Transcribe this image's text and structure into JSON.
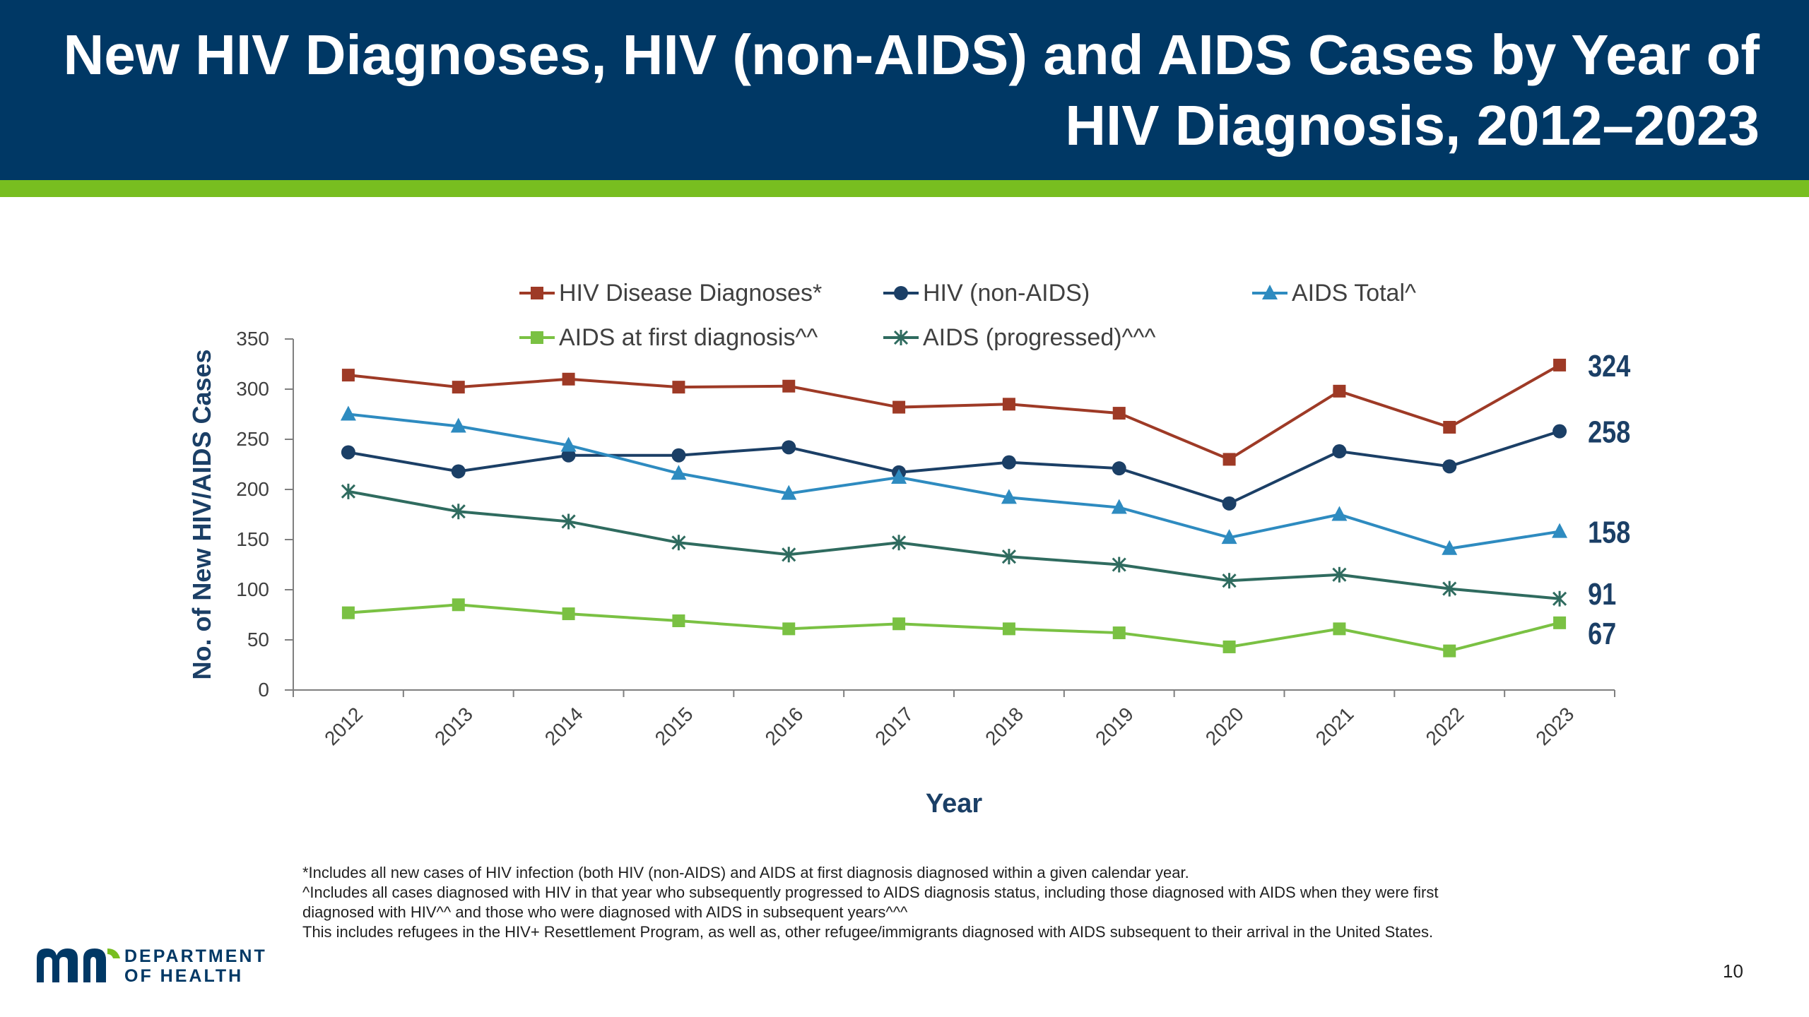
{
  "slide": {
    "title_line1": "New HIV Diagnoses, HIV (non-AIDS) and AIDS Cases by Year of",
    "title_line2": "HIV Diagnosis, 2012–2023",
    "page_number": "10",
    "footnotes": [
      "*Includes all new cases of HIV infection (both HIV (non-AIDS) and AIDS at first diagnosis diagnosed within a given calendar year.",
      "^Includes all cases diagnosed with HIV in that year who subsequently progressed to AIDS diagnosis status, including those diagnosed with AIDS when they were first",
      "diagnosed with HIV^^ and those who were diagnosed with AIDS in subsequent years^^^",
      "This includes refugees in the HIV+ Resettlement Program, as well as, other refugee/immigrants  diagnosed with AIDS subsequent to their arrival in the United States."
    ],
    "logo": {
      "line1": "DEPARTMENT",
      "line2": "OF HEALTH",
      "color": "#003865"
    },
    "colors": {
      "header": "#003865",
      "stripe": "#78be20"
    }
  },
  "chart_data": {
    "type": "line",
    "title": "",
    "xlabel": "Year",
    "ylabel": "No. of New HIV/AIDS Cases",
    "ylim": [
      0,
      350
    ],
    "yticks": [
      0,
      50,
      100,
      150,
      200,
      250,
      300,
      350
    ],
    "grid": false,
    "legend_position": "top",
    "x": [
      "2012",
      "2013",
      "2014",
      "2015",
      "2016",
      "2017",
      "2018",
      "2019",
      "2020",
      "2021",
      "2022",
      "2023"
    ],
    "series": [
      {
        "name": "HIV Disease Diagnoses*",
        "color": "#9e3a26",
        "marker": "square",
        "values": [
          314,
          302,
          310,
          302,
          303,
          282,
          285,
          276,
          230,
          298,
          262,
          324
        ],
        "end_label": "324"
      },
      {
        "name": "HIV (non-AIDS)",
        "color": "#1b3f66",
        "marker": "circle",
        "values": [
          237,
          218,
          234,
          234,
          242,
          217,
          227,
          221,
          186,
          238,
          223,
          258
        ],
        "end_label": "258"
      },
      {
        "name": "AIDS Total^",
        "color": "#2e8bc0",
        "marker": "triangle",
        "values": [
          275,
          263,
          244,
          216,
          196,
          212,
          192,
          182,
          152,
          175,
          141,
          158
        ],
        "end_label": "158"
      },
      {
        "name": "AIDS at first diagnosis^^",
        "color": "#7ac143",
        "marker": "square",
        "values": [
          77,
          85,
          76,
          69,
          61,
          66,
          61,
          57,
          43,
          61,
          39,
          67
        ],
        "end_label": "67"
      },
      {
        "name": "AIDS (progressed)^^^",
        "color": "#2f6b5f",
        "marker": "star",
        "values": [
          198,
          178,
          168,
          147,
          135,
          147,
          133,
          125,
          109,
          115,
          101,
          91
        ],
        "end_label": "91"
      }
    ]
  }
}
